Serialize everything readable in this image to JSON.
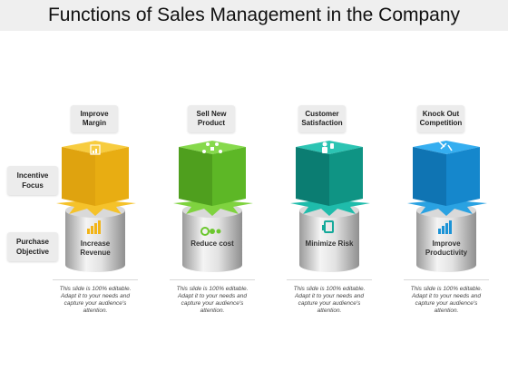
{
  "title": "Functions of Sales Management in the Company",
  "row_labels": {
    "incentive": "Incentive Focus",
    "purchase": "Purchase Objective"
  },
  "columns": [
    {
      "top_label": "Improve Margin",
      "cylinder_label": "Increase Revenue",
      "description": "This slide is 100% editable. Adapt it to your needs and capture your audience's attention.",
      "cube_color": "#f2b417",
      "top_icon": "chart-icon",
      "bottom_icon": "bar-chart-icon"
    },
    {
      "top_label": "Sell New Product",
      "cylinder_label": "Reduce cost",
      "description": "This slide is 100% editable. Adapt it to your needs and capture your audience's attention.",
      "cube_color": "#6cc72f",
      "top_icon": "network-icon",
      "bottom_icon": "coins-icon"
    },
    {
      "top_label": "Customer Satisfaction",
      "cylinder_label": "Minimize Risk",
      "description": "This slide is 100% editable. Adapt it to your needs and capture your audience's attention.",
      "cube_color": "#14a99a",
      "top_icon": "thumbs-up-person-icon",
      "bottom_icon": "shield-icon"
    },
    {
      "top_label": "Knock Out Competition",
      "cylinder_label": "Improve Productivity",
      "description": "This slide is 100% editable. Adapt it to your needs and capture your audience's attention.",
      "cube_color": "#1b93d6",
      "top_icon": "burst-icon",
      "bottom_icon": "growth-chart-icon"
    }
  ]
}
